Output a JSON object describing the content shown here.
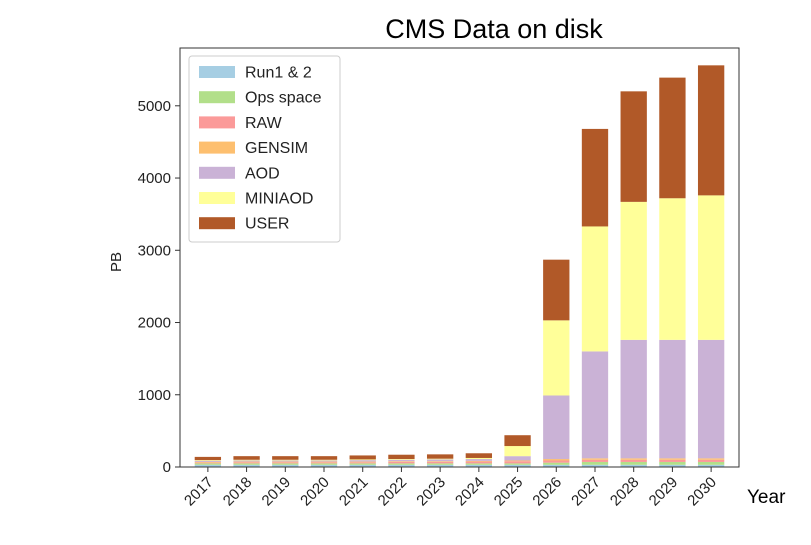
{
  "chart_data": {
    "type": "bar",
    "stacked": true,
    "title": "CMS Data on disk",
    "xlabel": "Year",
    "ylabel": "PB",
    "ylim": [
      0,
      5800
    ],
    "yticks": [
      0,
      1000,
      2000,
      3000,
      4000,
      5000
    ],
    "grid": false,
    "legend_position": "top-left",
    "categories": [
      "2017",
      "2018",
      "2019",
      "2020",
      "2021",
      "2022",
      "2023",
      "2024",
      "2025",
      "2026",
      "2027",
      "2028",
      "2029",
      "2030"
    ],
    "series": [
      {
        "name": "Run1 & 2",
        "color": "#a6cee3",
        "values": [
          30,
          30,
          30,
          30,
          30,
          30,
          30,
          30,
          30,
          30,
          30,
          30,
          30,
          30
        ]
      },
      {
        "name": "Ops space",
        "color": "#b2df8a",
        "values": [
          20,
          20,
          20,
          20,
          20,
          20,
          20,
          20,
          20,
          30,
          40,
          40,
          40,
          40
        ]
      },
      {
        "name": "RAW",
        "color": "#fb9a99",
        "values": [
          10,
          15,
          15,
          15,
          15,
          20,
          20,
          25,
          30,
          30,
          30,
          30,
          30,
          30
        ]
      },
      {
        "name": "GENSIM",
        "color": "#fdbf6f",
        "values": [
          10,
          10,
          10,
          10,
          10,
          10,
          10,
          10,
          10,
          20,
          20,
          20,
          20,
          20
        ]
      },
      {
        "name": "AOD",
        "color": "#cab2d6",
        "values": [
          15,
          15,
          15,
          15,
          20,
          20,
          25,
          25,
          60,
          880,
          1480,
          1640,
          1640,
          1640
        ]
      },
      {
        "name": "MINIAOD",
        "color": "#ffff99",
        "values": [
          10,
          10,
          10,
          10,
          10,
          10,
          10,
          15,
          140,
          1040,
          1730,
          1910,
          1960,
          2000
        ]
      },
      {
        "name": "USER",
        "color": "#b15928",
        "values": [
          45,
          50,
          50,
          50,
          55,
          60,
          60,
          65,
          150,
          840,
          1350,
          1530,
          1670,
          1800
        ]
      }
    ]
  }
}
